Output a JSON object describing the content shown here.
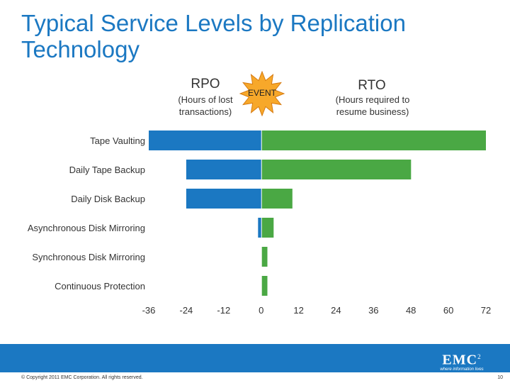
{
  "slide": {
    "title": "Typical Service Levels by Replication Technology",
    "rpo_heading": "RPO",
    "rpo_subheading": "(Hours of lost transactions)",
    "rto_heading": "RTO",
    "rto_subheading": "(Hours required to resume business)",
    "event_label": "EVENT",
    "copyright": "© Copyright 2011 EMC Corporation. All rights reserved.",
    "page_number": "10",
    "logo_text": "EMC",
    "logo_superscript": "2",
    "logo_tagline": "where information lives"
  },
  "colors": {
    "title": "#1b78c2",
    "rpo_bar": "#1b78c2",
    "rto_bar": "#4aa844",
    "footer": "#1b78c2",
    "event_star": "#f7a82a"
  },
  "chart_data": {
    "type": "bar",
    "orientation": "horizontal",
    "categories": [
      "Tape Vaulting",
      "Daily Tape Backup",
      "Daily Disk Backup",
      "Asynchronous Disk Mirroring",
      "Synchronous Disk Mirroring",
      "Continuous Protection"
    ],
    "series": [
      {
        "name": "RPO",
        "values": [
          -36,
          -24,
          -24,
          -1,
          0,
          0
        ]
      },
      {
        "name": "RTO",
        "values": [
          72,
          48,
          10,
          4,
          2,
          2
        ]
      }
    ],
    "x_ticks": [
      -36,
      -24,
      -12,
      0,
      12,
      24,
      36,
      48,
      60,
      72
    ],
    "xlim": [
      -36,
      72
    ],
    "grid": false
  }
}
